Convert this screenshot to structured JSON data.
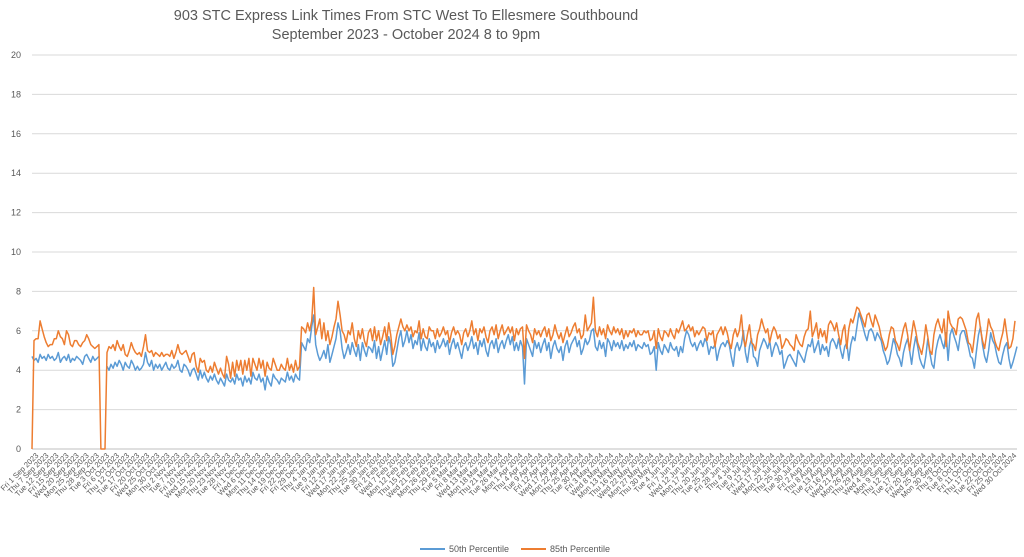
{
  "chart_data": {
    "type": "line",
    "title": "903 STC Express Link Times From STC West To Ellesmere Southbound",
    "subtitle": "September 2023 - October 2024 8 to 9pm",
    "xlabel": "",
    "ylabel": "",
    "ylim": [
      0,
      20
    ],
    "yticks": [
      "0",
      "2",
      "4",
      "6",
      "8",
      "10",
      "12",
      "14",
      "16",
      "18",
      "20"
    ],
    "grid": true,
    "legend_position": "bottom",
    "colors": {
      "p50": "#5B9BD5",
      "p85": "#ED7D31",
      "grid": "#d9d9d9",
      "axis": "#bfbfbf"
    },
    "x_tick_labels": [
      "Fri 1 Sep 2023",
      "Thu 7 Sep 2023",
      "Tue 12 Sep 2023",
      "Fri 15 Sep 2023",
      "Wed 20 Sep 2023",
      "Mon 25 Sep 2023",
      "Thu 28 Sep 2023",
      "Tue 3 Oct 2023",
      "Fri 6 Oct 2023",
      "Thu 12 Oct 2023",
      "Tue 17 Oct 2023",
      "Fri 20 Oct 2023",
      "Wed 25 Oct 2023",
      "Mon 30 Oct 2023",
      "Thu 2 Nov 2023",
      "Tue 7 Nov 2023",
      "Fri 10 Nov 2023",
      "Wed 15 Nov 2023",
      "Mon 20 Nov 2023",
      "Thu 23 Nov 2023",
      "Tue 28 Nov 2023",
      "Fri 1 Dec 2023",
      "Wed 6 Dec 2023",
      "Mon 11 Dec 2023",
      "Thu 14 Dec 2023",
      "Tue 19 Dec 2023",
      "Fri 22 Dec 2023",
      "Fri 29 Dec 2023",
      "Thu 4 Jan 2024",
      "Tue 9 Jan 2024",
      "Fri 12 Jan 2024",
      "Wed 17 Jan 2024",
      "Mon 22 Jan 2024",
      "Thu 25 Jan 2024",
      "Tue 30 Jan 2024",
      "Fri 2 Feb 2024",
      "Wed 7 Feb 2024",
      "Mon 12 Feb 2024",
      "Thu 15 Feb 2024",
      "Wed 21 Feb 2024",
      "Mon 26 Feb 2024",
      "Thu 29 Feb 2024",
      "Tue 5 Mar 2024",
      "Fri 8 Mar 2024",
      "Wed 13 Mar 2024",
      "Mon 18 Mar 2024",
      "Thu 21 Mar 2024",
      "Tue 26 Mar 2024",
      "Mon 1 Apr 2024",
      "Thu 4 Apr 2024",
      "Tue 9 Apr 2024",
      "Fri 12 Apr 2024",
      "Wed 17 Apr 2024",
      "Mon 22 Apr 2024",
      "Thu 25 Apr 2024",
      "Tue 30 Apr 2024",
      "Fri 3 May 2024",
      "Wed 8 May 2024",
      "Mon 13 May 2024",
      "Thu 16 May 2024",
      "Wed 22 May 2024",
      "Mon 27 May 2024",
      "Thu 30 May 2024",
      "Tue 4 Jun 2024",
      "Fri 7 Jun 2024",
      "Wed 12 Jun 2024",
      "Mon 17 Jun 2024",
      "Thu 20 Jun 2024",
      "Tue 25 Jun 2024",
      "Fri 28 Jun 2024",
      "Thu 4 Jul 2024",
      "Tue 9 Jul 2024",
      "Fri 12 Jul 2024",
      "Wed 17 Jul 2024",
      "Mon 22 Jul 2024",
      "Thu 25 Jul 2024",
      "Tue 30 Jul 2024",
      "Fri 2 Aug 2024",
      "Thu 8 Aug 2024",
      "Tue 13 Aug 2024",
      "Fri 16 Aug 2024",
      "Wed 21 Aug 2024",
      "Mon 26 Aug 2024",
      "Thu 29 Aug 2024",
      "Wed 4 Sep 2024",
      "Mon 9 Sep 2024",
      "Thu 12 Sep 2024",
      "Tue 17 Sep 2024",
      "Fri 20 Sep 2024",
      "Wed 25 Sep 2024",
      "Mon 30 Sep 2024",
      "Thu 3 Oct 2024",
      "Tue 8 Oct 2024",
      "Fri 11 Oct 2024",
      "Thu 17 Oct 2024",
      "Tue 22 Oct 2024",
      "Fri 25 Oct 2024",
      "Wed 30 Oct 2024"
    ],
    "series": [
      {
        "name": "50th Percentile",
        "color": "#5B9BD5",
        "values": [
          4.7,
          4.5,
          4.6,
          4.4,
          4.8,
          4.6,
          4.7,
          4.5,
          4.8,
          4.6,
          4.7,
          4.5,
          4.6,
          4.9,
          4.4,
          4.6,
          4.7,
          4.5,
          4.8,
          4.4,
          4.6,
          4.5,
          4.7,
          4.6,
          4.5,
          4.3,
          4.7,
          4.8,
          4.6,
          4.4,
          4.7,
          4.5,
          4.6,
          4.7,
          null,
          null,
          null,
          4.2,
          4.0,
          4.3,
          4.1,
          4.4,
          4.2,
          4.5,
          4.3,
          4.0,
          4.4,
          4.2,
          4.1,
          4.5,
          4.3,
          4.0,
          4.2,
          4.0,
          4.1,
          4.3,
          4.9,
          4.4,
          4.2,
          4.5,
          4.0,
          4.3,
          4.1,
          4.3,
          4.0,
          4.2,
          4.4,
          4.1,
          4.0,
          4.3,
          4.1,
          4.2,
          4.5,
          4.0,
          3.9,
          4.3,
          4.2,
          4.0,
          3.7,
          4.0,
          4.1,
          3.8,
          3.5,
          4.0,
          3.6,
          3.9,
          3.6,
          3.4,
          3.7,
          3.5,
          3.8,
          3.5,
          3.3,
          3.6,
          3.4,
          3.2,
          3.8,
          3.5,
          3.4,
          3.6,
          3.3,
          3.8,
          3.5,
          3.6,
          3.2,
          3.7,
          3.4,
          3.6,
          3.3,
          3.9,
          3.6,
          3.5,
          3.8,
          3.4,
          3.6,
          3.0,
          3.7,
          3.4,
          3.2,
          3.8,
          3.6,
          3.5,
          3.3,
          3.6,
          3.5,
          3.4,
          3.9,
          3.5,
          3.7,
          3.4,
          3.8,
          3.6,
          3.5,
          5.4,
          5.2,
          5.0,
          5.6,
          5.4,
          6.2,
          6.8,
          5.3,
          4.8,
          4.5,
          4.7,
          5.0,
          4.6,
          5.3,
          4.4,
          4.8,
          5.2,
          5.6,
          6.4,
          6.0,
          5.1,
          4.6,
          4.9,
          5.3,
          4.8,
          5.4,
          5.0,
          4.7,
          5.3,
          4.5,
          5.4,
          5.0,
          4.7,
          5.2,
          5.1,
          4.9,
          5.5,
          4.6,
          5.2,
          4.5,
          5.0,
          5.5,
          4.8,
          5.7,
          5.3,
          4.2,
          4.4,
          5.0,
          5.6,
          6.0,
          5.2,
          5.5,
          6.0,
          5.4,
          5.8,
          5.1,
          5.5,
          5.3,
          5.9,
          5.0,
          5.6,
          5.2,
          5.0,
          5.6,
          5.2,
          5.4,
          4.9,
          5.5,
          5.1,
          5.3,
          5.6,
          5.2,
          5.5,
          4.8,
          5.3,
          5.6,
          5.1,
          5.4,
          5.0,
          4.6,
          5.2,
          5.4,
          5.0,
          5.3,
          5.7,
          5.1,
          5.4,
          4.8,
          5.5,
          5.2,
          5.6,
          5.0,
          4.7,
          5.3,
          5.5,
          5.1,
          5.6,
          4.9,
          5.3,
          5.5,
          5.1,
          5.5,
          5.8,
          5.3,
          5.7,
          5.0,
          5.4,
          5.0,
          5.5,
          5.2,
          3.3,
          5.6,
          5.3,
          5.0,
          4.7,
          5.5,
          5.1,
          5.4,
          4.9,
          5.3,
          5.6,
          5.0,
          5.4,
          4.6,
          5.2,
          5.5,
          5.1,
          4.9,
          5.2,
          4.5,
          5.2,
          5.5,
          4.9,
          5.3,
          5.5,
          5.7,
          5.2,
          5.5,
          4.8,
          5.1,
          5.6,
          5.3,
          5.5,
          6.0,
          6.1,
          5.2,
          5.0,
          5.5,
          5.1,
          5.4,
          4.7,
          5.6,
          5.4,
          5.0,
          5.5,
          5.2,
          5.4,
          5.1,
          5.5,
          5.0,
          5.3,
          5.1,
          5.4,
          5.2,
          5.5,
          5.0,
          5.3,
          5.2,
          5.1,
          5.4,
          5.2,
          5.3,
          4.8,
          4.9,
          5.2,
          4.0,
          5.4,
          5.0,
          4.8,
          5.3,
          5.1,
          4.9,
          5.4,
          5.1,
          5.0,
          5.2,
          4.7,
          5.2,
          4.9,
          5.6,
          6.0,
          5.8,
          5.4,
          5.2,
          5.4,
          5.0,
          5.3,
          5.5,
          5.2,
          5.6,
          5.4,
          4.8,
          5.2,
          5.1,
          5.3,
          4.5,
          5.0,
          5.3,
          5.4,
          5.2,
          5.5,
          5.3,
          4.7,
          4.2,
          5.1,
          5.4,
          5.0,
          5.3,
          6.0,
          4.9,
          4.4,
          5.2,
          5.6,
          4.7,
          4.6,
          4.2,
          5.0,
          5.3,
          5.6,
          5.4,
          5.1,
          5.5,
          4.7,
          5.1,
          5.4,
          5.2,
          4.8,
          5.0,
          4.1,
          4.4,
          4.7,
          4.8,
          4.6,
          4.4,
          4.2,
          5.0,
          4.8,
          4.6,
          4.4,
          4.9,
          5.3,
          5.2,
          5.6,
          4.9,
          5.2,
          5.5,
          4.8,
          5.3,
          5.0,
          5.2,
          4.7,
          5.4,
          5.6,
          5.4,
          5.1,
          5.6,
          5.0,
          4.6,
          5.2,
          5.4,
          4.5,
          5.3,
          5.7,
          5.5,
          6.2,
          6.9,
          6.6,
          6.2,
          5.8,
          5.5,
          6.0,
          6.1,
          5.9,
          5.5,
          5.9,
          5.7,
          5.5,
          5.0,
          4.7,
          4.3,
          4.5,
          5.0,
          5.6,
          5.3,
          4.8,
          4.6,
          4.2,
          4.9,
          5.3,
          5.6,
          5.0,
          4.3,
          5.1,
          5.7,
          5.2,
          4.6,
          4.3,
          4.1,
          4.7,
          5.6,
          4.9,
          4.3,
          4.1,
          5.0,
          5.5,
          5.8,
          5.4,
          5.1,
          5.9,
          4.5,
          5.8,
          6.1,
          5.7,
          5.4,
          5.0,
          5.8,
          6.0,
          6.0,
          5.6,
          5.2,
          4.7,
          4.6,
          4.1,
          5.0,
          5.8,
          6.2,
          5.3,
          4.7,
          4.4,
          5.0,
          5.9,
          5.5,
          5.3,
          4.8,
          4.4,
          4.3,
          4.8,
          5.2,
          5.4,
          4.6,
          4.1,
          4.4,
          4.8,
          5.2
        ]
      },
      {
        "name": "85th Percentile",
        "color": "#ED7D31",
        "values": [
          0.0,
          5.5,
          5.6,
          5.6,
          6.5,
          6.1,
          5.7,
          5.4,
          5.2,
          5.3,
          5.3,
          5.6,
          5.6,
          6.0,
          5.7,
          5.6,
          5.3,
          6.0,
          5.8,
          5.3,
          5.2,
          5.5,
          5.5,
          5.3,
          5.2,
          5.4,
          5.5,
          5.8,
          5.6,
          5.3,
          5.2,
          5.1,
          5.2,
          5.3,
          0.0,
          0.0,
          0.0,
          4.9,
          5.2,
          5.1,
          5.3,
          5.0,
          5.5,
          5.2,
          5.0,
          5.3,
          4.8,
          4.7,
          5.0,
          5.4,
          5.1,
          4.9,
          4.8,
          4.9,
          4.7,
          5.2,
          5.8,
          5.0,
          4.9,
          5.0,
          4.7,
          4.9,
          4.8,
          4.7,
          4.9,
          4.7,
          4.8,
          4.8,
          4.7,
          5.0,
          4.6,
          4.9,
          5.3,
          4.9,
          4.8,
          4.9,
          5.0,
          4.7,
          4.4,
          4.8,
          4.9,
          4.2,
          3.9,
          4.6,
          4.4,
          4.5,
          4.0,
          3.9,
          4.2,
          3.9,
          4.4,
          4.1,
          3.8,
          4.1,
          3.8,
          3.6,
          4.7,
          4.3,
          3.6,
          4.4,
          3.7,
          4.5,
          4.0,
          4.5,
          3.8,
          4.5,
          4.0,
          4.6,
          3.7,
          4.6,
          4.3,
          4.0,
          4.6,
          4.1,
          4.5,
          3.7,
          4.4,
          4.1,
          4.0,
          4.6,
          4.3,
          4.0,
          4.0,
          4.3,
          4.1,
          4.0,
          4.6,
          4.0,
          4.3,
          3.9,
          4.5,
          4.0,
          4.2,
          6.2,
          6.1,
          5.9,
          6.4,
          6.0,
          6.5,
          8.2,
          5.8,
          6.2,
          6.6,
          5.6,
          6.4,
          5.5,
          6.0,
          5.3,
          5.7,
          6.2,
          6.6,
          7.5,
          6.8,
          6.0,
          5.8,
          5.4,
          6.0,
          5.8,
          6.4,
          5.6,
          5.2,
          6.0,
          5.6,
          6.1,
          5.5,
          5.2,
          5.9,
          6.1,
          5.5,
          6.2,
          5.5,
          6.0,
          5.3,
          5.7,
          6.2,
          5.5,
          6.4,
          5.8,
          4.8,
          5.2,
          5.8,
          6.2,
          6.6,
          6.2,
          6.0,
          6.3,
          6.0,
          6.2,
          5.7,
          6.0,
          5.9,
          6.5,
          5.6,
          6.1,
          5.7,
          5.6,
          6.2,
          6.0,
          6.0,
          5.6,
          6.1,
          5.7,
          5.9,
          6.2,
          5.8,
          6.0,
          5.4,
          5.9,
          6.2,
          5.8,
          6.0,
          5.8,
          5.3,
          5.9,
          6.1,
          5.7,
          6.0,
          6.5,
          5.8,
          6.1,
          5.5,
          6.1,
          5.9,
          6.2,
          5.7,
          5.4,
          6.0,
          6.2,
          5.8,
          6.3,
          5.6,
          6.0,
          6.3,
          5.8,
          6.0,
          6.2,
          5.9,
          6.2,
          5.5,
          6.1,
          5.8,
          6.1,
          6.2,
          4.6,
          6.3,
          6.0,
          5.8,
          5.4,
          6.1,
          5.8,
          6.0,
          5.7,
          6.0,
          6.2,
          5.7,
          6.1,
          5.5,
          5.8,
          6.3,
          5.9,
          5.6,
          5.9,
          5.4,
          5.8,
          6.2,
          5.7,
          5.9,
          6.2,
          6.4,
          5.9,
          6.1,
          5.6,
          5.8,
          6.8,
          6.0,
          6.2,
          6.4,
          7.7,
          6.0,
          5.7,
          6.2,
          5.8,
          6.1,
          5.6,
          6.3,
          6.0,
          5.8,
          6.2,
          5.9,
          6.1,
          5.8,
          6.1,
          5.6,
          6.0,
          5.7,
          6.0,
          5.9,
          6.1,
          5.7,
          6.0,
          5.8,
          5.8,
          6.0,
          5.9,
          6.0,
          5.5,
          5.6,
          6.0,
          5.1,
          6.1,
          5.7,
          5.5,
          6.0,
          5.9,
          5.7,
          6.1,
          5.8,
          5.6,
          6.1,
          5.9,
          6.2,
          6.5,
          6.0,
          6.1,
          6.3,
          6.0,
          6.2,
          5.7,
          6.0,
          5.8,
          6.0,
          6.2,
          6.1,
          5.5,
          5.9,
          5.8,
          6.0,
          5.2,
          5.8,
          6.0,
          6.2,
          5.8,
          6.2,
          5.9,
          5.4,
          5.1,
          5.8,
          6.1,
          5.7,
          6.0,
          6.8,
          5.6,
          5.2,
          5.8,
          6.3,
          5.4,
          5.3,
          5.0,
          5.8,
          6.1,
          6.6,
          6.2,
          5.9,
          6.1,
          5.4,
          5.9,
          6.2,
          6.0,
          5.6,
          5.8,
          5.1,
          5.3,
          5.6,
          5.5,
          5.3,
          5.2,
          5.0,
          5.8,
          5.5,
          5.3,
          5.2,
          5.7,
          6.0,
          6.1,
          7.0,
          5.7,
          6.0,
          6.4,
          5.6,
          6.1,
          5.7,
          6.0,
          5.4,
          6.3,
          6.5,
          6.3,
          6.0,
          6.4,
          5.8,
          5.3,
          6.0,
          6.3,
          5.1,
          6.1,
          6.6,
          6.4,
          6.8,
          7.2,
          7.1,
          6.8,
          6.5,
          6.2,
          6.8,
          6.9,
          6.5,
          6.2,
          6.8,
          6.5,
          6.2,
          5.7,
          5.4,
          5.0,
          5.2,
          5.8,
          6.2,
          6.1,
          5.5,
          5.3,
          5.0,
          5.6,
          6.1,
          6.4,
          5.8,
          5.0,
          5.8,
          6.5,
          6.0,
          5.4,
          5.1,
          4.8,
          5.4,
          6.3,
          5.7,
          5.0,
          4.8,
          5.8,
          6.3,
          6.6,
          6.2,
          5.9,
          6.6,
          5.2,
          7.0,
          6.4,
          6.2,
          6.1,
          5.8,
          6.6,
          6.7,
          6.6,
          6.3,
          6.0,
          5.4,
          5.3,
          4.9,
          5.7,
          6.6,
          6.9,
          6.1,
          5.5,
          5.1,
          5.8,
          6.6,
          6.2,
          6.0,
          5.5,
          5.2,
          5.0,
          5.5,
          5.9,
          6.6,
          5.8,
          5.1,
          5.2,
          5.6,
          6.5
        ]
      }
    ]
  }
}
